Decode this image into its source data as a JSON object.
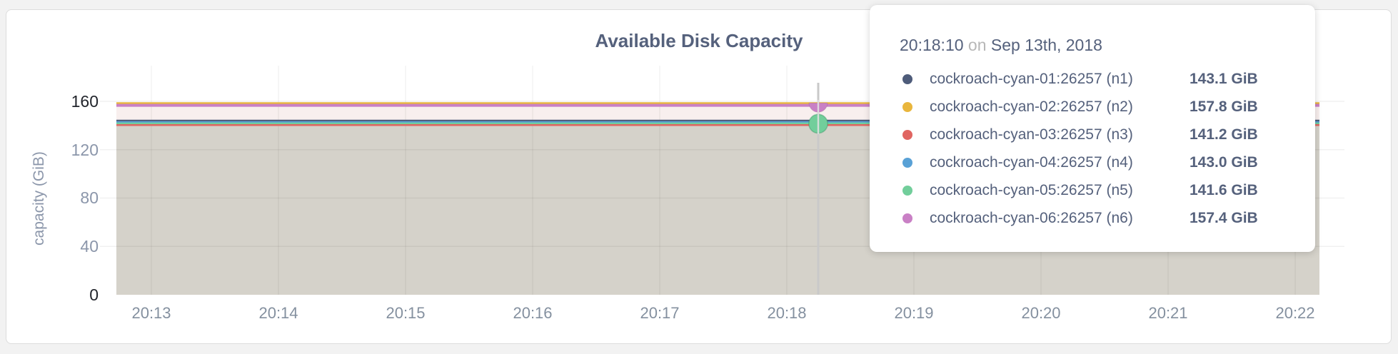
{
  "chart_data": {
    "type": "area",
    "title": "Available Disk Capacity",
    "ylabel": "capacity (GiB)",
    "xlabel": "",
    "x_ticks": [
      "20:13",
      "20:14",
      "20:15",
      "20:16",
      "20:17",
      "20:18",
      "20:19",
      "20:20",
      "20:21",
      "20:22"
    ],
    "y_ticks": [
      "160",
      "120",
      "80",
      "40",
      "0"
    ],
    "ylim": [
      0,
      160
    ],
    "grid": true,
    "legend_position": "hover-tooltip",
    "hover_point": {
      "time": "20:18:10",
      "date": "Sep 13th, 2018",
      "highlighted_series": [
        "n5",
        "n6"
      ]
    },
    "series": [
      {
        "name": "cockroach-cyan-01:26257 (n1)",
        "node": "n1",
        "color": "#4e5c7a",
        "value_gib": 143.1,
        "value_label": "143.1 GiB",
        "flat": true
      },
      {
        "name": "cockroach-cyan-02:26257 (n2)",
        "node": "n2",
        "color": "#e9b63d",
        "value_gib": 157.8,
        "value_label": "157.8 GiB",
        "flat": true
      },
      {
        "name": "cockroach-cyan-03:26257 (n3)",
        "node": "n3",
        "color": "#e06561",
        "value_gib": 141.2,
        "value_label": "141.2 GiB",
        "flat": true
      },
      {
        "name": "cockroach-cyan-04:26257 (n4)",
        "node": "n4",
        "color": "#59a1d6",
        "value_gib": 143.0,
        "value_label": "143.0 GiB",
        "flat": true
      },
      {
        "name": "cockroach-cyan-05:26257 (n5)",
        "node": "n5",
        "color": "#72ce9b",
        "value_gib": 141.6,
        "value_label": "141.6 GiB",
        "flat": true
      },
      {
        "name": "cockroach-cyan-06:26257 (n6)",
        "node": "n6",
        "color": "#c980c5",
        "value_gib": 157.4,
        "value_label": "157.4 GiB",
        "flat": true
      }
    ]
  },
  "tooltip": {
    "time": "20:18:10",
    "connector": "on",
    "date": "Sep 13th, 2018"
  },
  "colors": {
    "band_upper": "#f8efee",
    "band_lower": "#d5d2ca",
    "title": "#55617c",
    "axis_label": "#8b96aa",
    "axis_label_dark": "#22252c",
    "hover_guideline": "#c9c9c9"
  }
}
